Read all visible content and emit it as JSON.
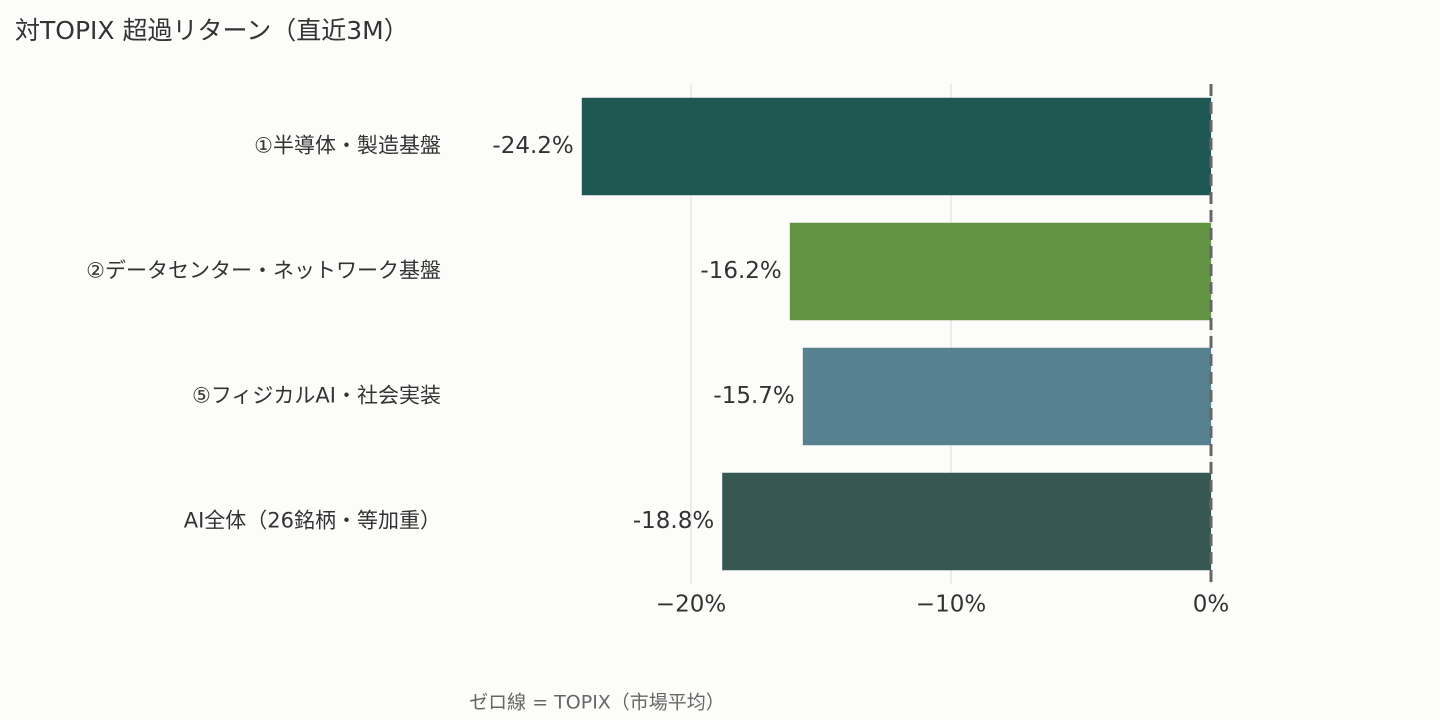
{
  "chart_data": {
    "type": "hbar",
    "title": "対TOPIX 超過リターン（直近3M）",
    "categories": [
      "①半導体・製造基盤",
      "②データセンター・ネットワーク基盤",
      "⑤フィジカルAI・社会実装",
      "AI全体（26銘柄・等加重）"
    ],
    "values": [
      -24.2,
      -16.2,
      -15.7,
      -18.8
    ],
    "value_labels": [
      "-24.2%",
      "-16.2%",
      "-15.7%",
      "-18.8%"
    ],
    "colors": [
      "#1f5752",
      "#629443",
      "#58818f",
      "#375753"
    ],
    "xlim": [
      -29,
      1
    ],
    "xticks": [
      {
        "value": -20,
        "label": "−20%"
      },
      {
        "value": -10,
        "label": "−10%"
      },
      {
        "value": 0,
        "label": "0%"
      }
    ],
    "grid": true,
    "zero_line": true,
    "annotation": "ゼロ線 = TOPIX（市場平均）"
  }
}
